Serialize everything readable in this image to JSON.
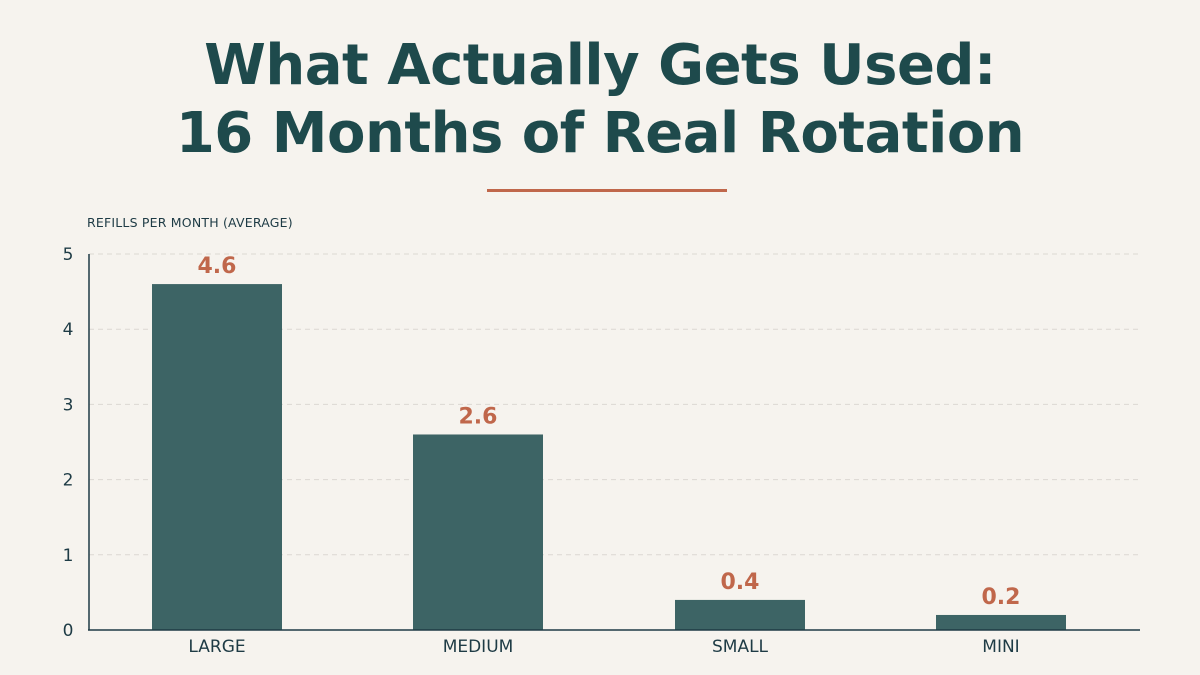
{
  "title_lines": [
    "What Actually Gets Used:",
    "16 Months of Real Rotation"
  ],
  "colors": {
    "background": "#f6f3ee",
    "bar": "#3d6465",
    "value_label": "#c0674b",
    "title": "#1e4a4c",
    "axis": "#1e3b45",
    "grid": "#dcd8d2",
    "accent_rule": "#c0674b"
  },
  "chart_data": {
    "type": "bar",
    "title": "What Actually Gets Used: 16 Months of Real Rotation",
    "ylabel": "REFILLS PER MONTH (AVERAGE)",
    "xlabel": "",
    "categories": [
      "LARGE",
      "MEDIUM",
      "SMALL",
      "MINI"
    ],
    "values": [
      4.6,
      2.6,
      0.4,
      0.2
    ],
    "value_labels": [
      "4.6",
      "2.6",
      "0.4",
      "0.2"
    ],
    "ylim": [
      0,
      5
    ],
    "yticks": [
      0,
      1,
      2,
      3,
      4,
      5
    ],
    "grid": true,
    "legend": "none"
  }
}
